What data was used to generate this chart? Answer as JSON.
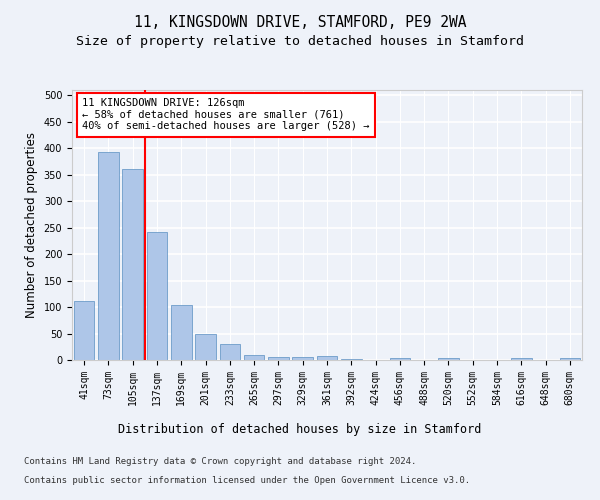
{
  "title_line1": "11, KINGSDOWN DRIVE, STAMFORD, PE9 2WA",
  "title_line2": "Size of property relative to detached houses in Stamford",
  "xlabel": "Distribution of detached houses by size in Stamford",
  "ylabel": "Number of detached properties",
  "categories": [
    "41sqm",
    "73sqm",
    "105sqm",
    "137sqm",
    "169sqm",
    "201sqm",
    "233sqm",
    "265sqm",
    "297sqm",
    "329sqm",
    "361sqm",
    "392sqm",
    "424sqm",
    "456sqm",
    "488sqm",
    "520sqm",
    "552sqm",
    "584sqm",
    "616sqm",
    "648sqm",
    "680sqm"
  ],
  "values": [
    111,
    393,
    361,
    242,
    104,
    50,
    30,
    10,
    6,
    6,
    7,
    2,
    0,
    4,
    0,
    4,
    0,
    0,
    3,
    0,
    3
  ],
  "bar_color": "#aec6e8",
  "bar_edge_color": "#5a8fc2",
  "red_line_x": 2.5,
  "annotation_text": "11 KINGSDOWN DRIVE: 126sqm\n← 58% of detached houses are smaller (761)\n40% of semi-detached houses are larger (528) →",
  "red_line_color": "red",
  "background_color": "#eef2f9",
  "plot_background": "#eef2f9",
  "grid_color": "white",
  "yticks": [
    0,
    50,
    100,
    150,
    200,
    250,
    300,
    350,
    400,
    450,
    500
  ],
  "ylim": [
    0,
    510
  ],
  "footer_line1": "Contains HM Land Registry data © Crown copyright and database right 2024.",
  "footer_line2": "Contains public sector information licensed under the Open Government Licence v3.0.",
  "title_fontsize": 10.5,
  "subtitle_fontsize": 9.5,
  "axis_label_fontsize": 8.5,
  "tick_fontsize": 7,
  "annotation_fontsize": 7.5,
  "footer_fontsize": 6.5
}
